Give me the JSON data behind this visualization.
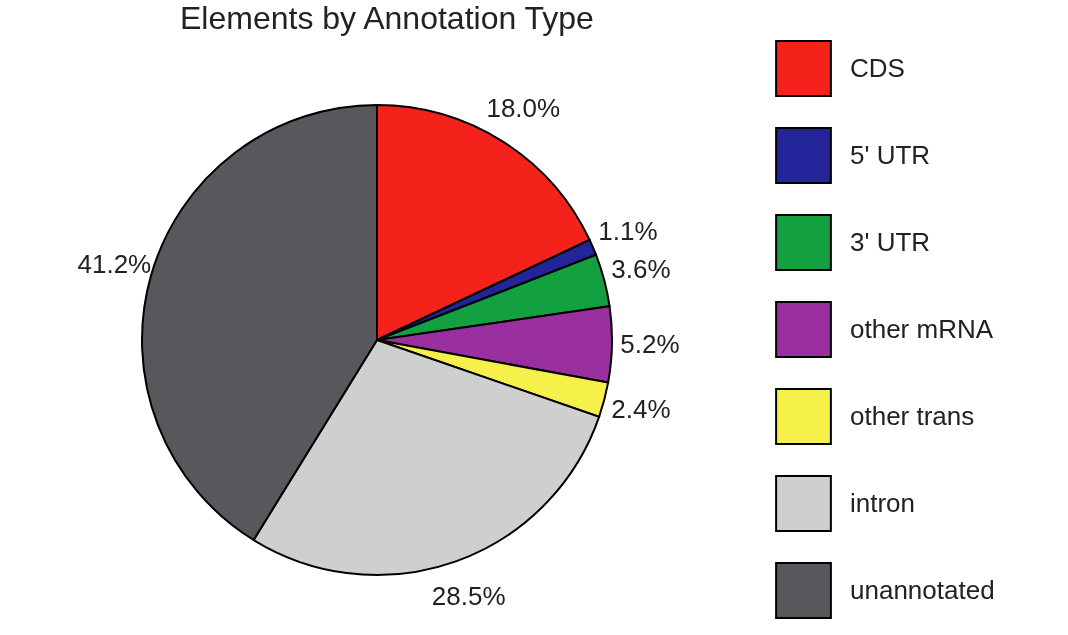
{
  "chart_data": {
    "type": "pie",
    "title": "Elements by Annotation Type",
    "categories": [
      "CDS",
      "5' UTR",
      "3' UTR",
      "other mRNA",
      "other trans",
      "intron",
      "unannotated"
    ],
    "values": [
      18.0,
      1.1,
      3.6,
      5.2,
      2.4,
      28.5,
      41.2
    ],
    "value_labels": [
      "18.0%",
      "1.1%",
      "3.6%",
      "5.2%",
      "2.4%",
      "28.5%",
      "41.2%"
    ],
    "colors": [
      "#f5221b",
      "#23239a",
      "#12a040",
      "#9a2fa0",
      "#f6f14a",
      "#cfcfcf",
      "#58585c"
    ],
    "legend": "right"
  }
}
